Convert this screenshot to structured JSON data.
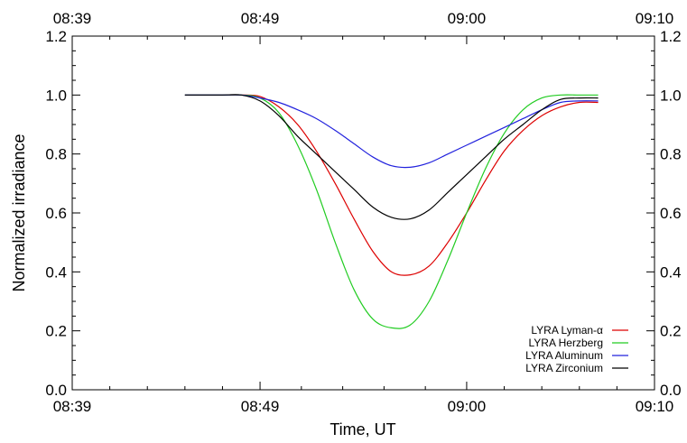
{
  "chart_data": {
    "type": "line",
    "title": "",
    "xlabel": "Time, UT",
    "ylabel": "Normalized irradiance",
    "x_unit": "minutes after 08:39",
    "xlim": [
      0,
      31
    ],
    "ylim": [
      0,
      1.2
    ],
    "x_ticks": [
      {
        "value": 0,
        "label": "08:39"
      },
      {
        "value": 10,
        "label": "08:49"
      },
      {
        "value": 21,
        "label": "09:00"
      },
      {
        "value": 31,
        "label": "09:10"
      }
    ],
    "y_ticks": [
      {
        "value": 0.0,
        "label": "0.0"
      },
      {
        "value": 0.2,
        "label": "0.2"
      },
      {
        "value": 0.4,
        "label": "0.4"
      },
      {
        "value": 0.6,
        "label": "0.6"
      },
      {
        "value": 0.8,
        "label": "0.8"
      },
      {
        "value": 1.0,
        "label": "1.0"
      },
      {
        "value": 1.2,
        "label": "1.2"
      }
    ],
    "mirror_axes": true,
    "grid": false,
    "legend_position": "bottom-right",
    "series": [
      {
        "name": "LYRA Lyman-α",
        "color": "#dd0000",
        "x": [
          6,
          8,
          9,
          10,
          11,
          12,
          13,
          14,
          15,
          16,
          17,
          18,
          19,
          20,
          21,
          22,
          23,
          24,
          25,
          26,
          27,
          28
        ],
        "y": [
          1.0,
          1.0,
          1.0,
          0.995,
          0.96,
          0.9,
          0.81,
          0.7,
          0.58,
          0.47,
          0.4,
          0.39,
          0.42,
          0.5,
          0.6,
          0.71,
          0.81,
          0.88,
          0.93,
          0.96,
          0.975,
          0.975
        ]
      },
      {
        "name": "LYRA Herzberg",
        "color": "#22cc22",
        "x": [
          6,
          8,
          9,
          10,
          11,
          12,
          13,
          14,
          15,
          16,
          17,
          18,
          19,
          20,
          21,
          22,
          23,
          24,
          25,
          26,
          27,
          28
        ],
        "y": [
          1.0,
          1.0,
          1.0,
          0.99,
          0.94,
          0.83,
          0.68,
          0.5,
          0.34,
          0.24,
          0.21,
          0.22,
          0.3,
          0.44,
          0.6,
          0.75,
          0.87,
          0.95,
          0.99,
          1.0,
          1.0,
          1.0
        ]
      },
      {
        "name": "LYRA Aluminum",
        "color": "#2222dd",
        "x": [
          6,
          8,
          9,
          10,
          11,
          12,
          13,
          14,
          15,
          16,
          17,
          18,
          19,
          20,
          21,
          22,
          23,
          24,
          25,
          26,
          27,
          28
        ],
        "y": [
          1.0,
          1.0,
          1.0,
          0.99,
          0.975,
          0.95,
          0.92,
          0.88,
          0.835,
          0.79,
          0.76,
          0.755,
          0.77,
          0.8,
          0.83,
          0.86,
          0.89,
          0.92,
          0.95,
          0.975,
          0.98,
          0.98
        ]
      },
      {
        "name": "LYRA Zirconium",
        "color": "#000000",
        "x": [
          6,
          8,
          9,
          10,
          11,
          12,
          13,
          14,
          15,
          16,
          17,
          18,
          19,
          20,
          21,
          22,
          23,
          24,
          25,
          26,
          27,
          28
        ],
        "y": [
          1.0,
          1.0,
          1.0,
          0.98,
          0.93,
          0.86,
          0.8,
          0.74,
          0.68,
          0.62,
          0.585,
          0.58,
          0.61,
          0.67,
          0.73,
          0.79,
          0.85,
          0.9,
          0.95,
          0.985,
          0.99,
          0.99
        ]
      }
    ]
  }
}
